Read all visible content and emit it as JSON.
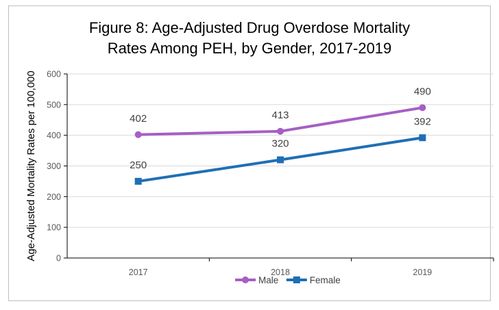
{
  "chart_data": {
    "type": "line",
    "title_line1": "Figure 8: Age-Adjusted Drug Overdose Mortality",
    "title_line2": "Rates Among PEH, by Gender, 2017-2019",
    "xlabel": "",
    "ylabel": "Age-Adjusted Mortality Rates per 100,000",
    "categories": [
      "2017",
      "2018",
      "2019"
    ],
    "ylim": [
      0,
      600
    ],
    "yticks": [
      0,
      100,
      200,
      300,
      400,
      500,
      600
    ],
    "grid": true,
    "legend_position": "bottom",
    "series": [
      {
        "name": "Male",
        "values": [
          402,
          413,
          490
        ],
        "labels": [
          "402",
          "413",
          "490"
        ],
        "color": "#a65fc4",
        "marker": "circle"
      },
      {
        "name": "Female",
        "values": [
          250,
          320,
          392
        ],
        "labels": [
          "250",
          "320",
          "392"
        ],
        "color": "#1f6fb5",
        "marker": "square"
      }
    ]
  }
}
